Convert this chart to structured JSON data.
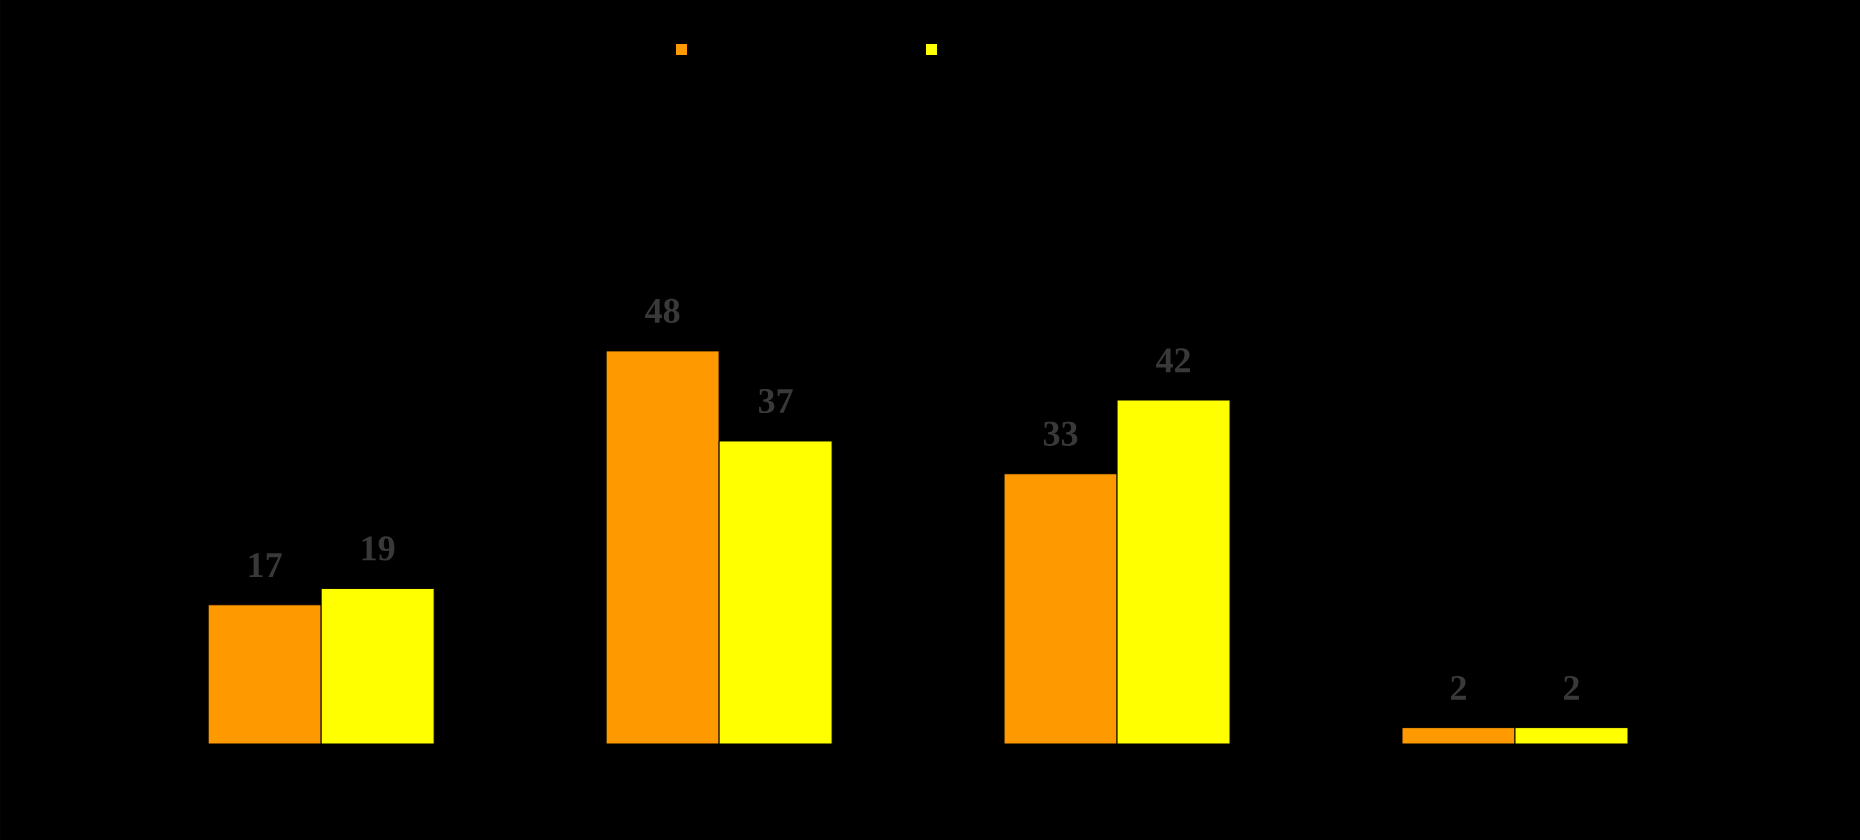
{
  "chart_data": {
    "type": "bar",
    "categories": [
      null,
      null,
      null,
      null
    ],
    "series": [
      {
        "color": "#ff9900",
        "values": [
          17,
          48,
          33,
          2
        ]
      },
      {
        "color": "#ffff00",
        "values": [
          19,
          37,
          42,
          2
        ]
      }
    ],
    "data_labels": true
  }
}
